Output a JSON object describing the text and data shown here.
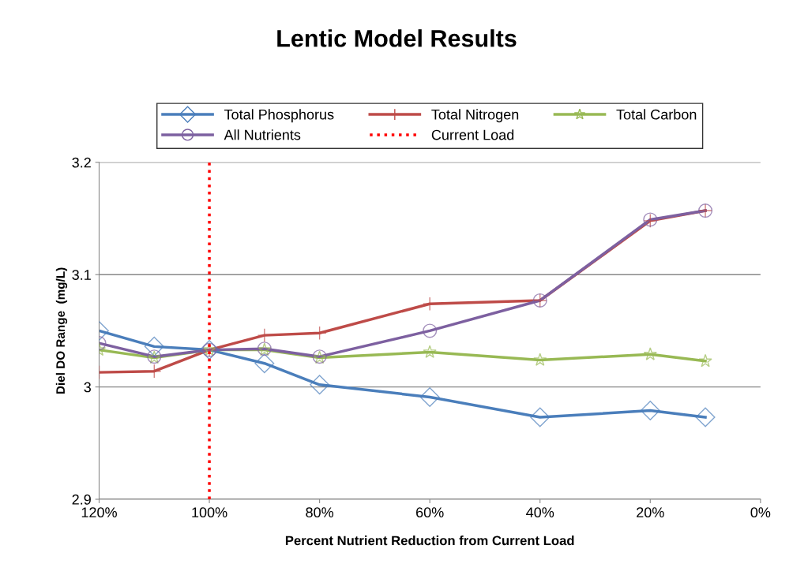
{
  "chart_data": {
    "type": "line",
    "title": "Lentic Model Results",
    "xlabel": "Percent Nutrient Reduction from Current Load",
    "ylabel": "Diel DO Range  (mg/L)",
    "x": [
      120,
      110,
      100,
      90,
      80,
      60,
      40,
      20,
      10
    ],
    "series": [
      {
        "name": "Total Phosphorus",
        "color": "#4a7ebb",
        "marker": "diamond",
        "values": [
          3.05,
          3.036,
          3.033,
          3.021,
          3.002,
          2.991,
          2.973,
          2.979,
          2.973
        ]
      },
      {
        "name": "Total Nitrogen",
        "color": "#be4b48",
        "marker": "cross",
        "values": [
          3.013,
          3.014,
          3.033,
          3.046,
          3.048,
          3.074,
          3.077,
          3.148,
          3.157
        ]
      },
      {
        "name": "Total Carbon",
        "color": "#98b954",
        "marker": "star",
        "values": [
          3.033,
          3.026,
          3.033,
          3.033,
          3.026,
          3.031,
          3.024,
          3.029,
          3.023
        ]
      },
      {
        "name": "All Nutrients",
        "color": "#7d60a0",
        "marker": "circle",
        "values": [
          3.039,
          3.027,
          3.033,
          3.034,
          3.027,
          3.05,
          3.077,
          3.149,
          3.157
        ]
      }
    ],
    "ref_lines": [
      {
        "axis": "x",
        "value": 100,
        "label": "Current Load",
        "color": "#ff0000",
        "line_style": "dotted"
      }
    ],
    "xlim": [
      120,
      0
    ],
    "xticks": [
      {
        "value": 120,
        "label": "120%"
      },
      {
        "value": 100,
        "label": "100%"
      },
      {
        "value": 80,
        "label": "80%"
      },
      {
        "value": 60,
        "label": "60%"
      },
      {
        "value": 40,
        "label": "40%"
      },
      {
        "value": 20,
        "label": "20%"
      },
      {
        "value": 0,
        "label": "0%"
      }
    ],
    "ylim": [
      2.9,
      3.2
    ],
    "yticks": [
      2.9,
      {
        "value": 3,
        "label": "3"
      },
      3.1,
      3.2
    ],
    "grid": "y",
    "legend": "top",
    "line_style": "solid"
  }
}
